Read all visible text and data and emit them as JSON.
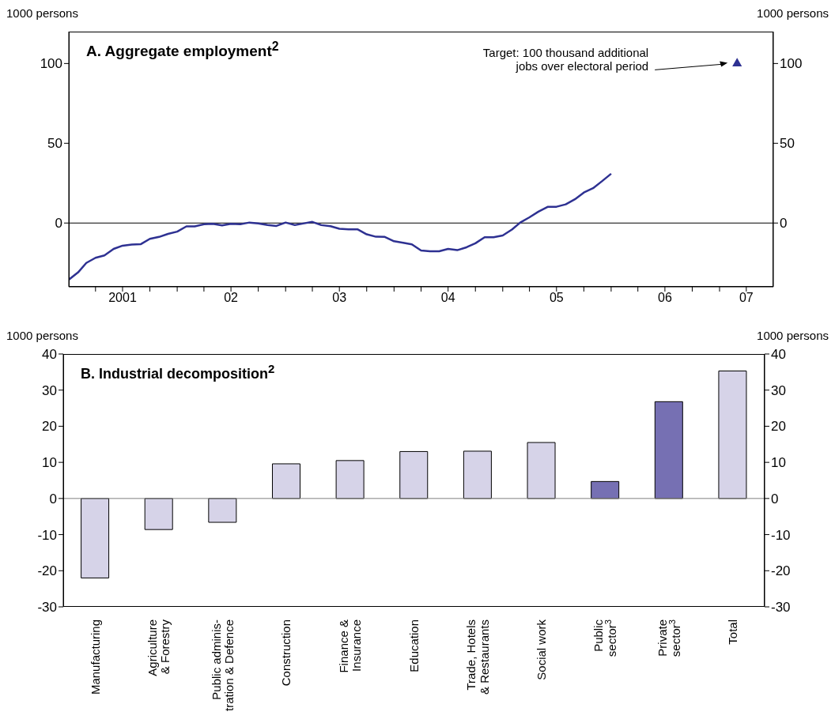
{
  "chart_data": [
    {
      "type": "line",
      "title": "A. Aggregate employment$^{2}$",
      "ylabel": "1000 persons",
      "y2label": "1000 persons",
      "xlim": [
        "2001-01",
        "2007-07"
      ],
      "ylim": [
        -40,
        120
      ],
      "y2lim": [
        -40,
        120
      ],
      "yticks": [
        0,
        50,
        100
      ],
      "y2ticks": [
        0,
        50,
        100
      ],
      "xticks": [
        {
          "value": "2001-04",
          "label": null
        },
        {
          "value": "2001-07",
          "label": "2001"
        },
        {
          "value": "2001-10",
          "label": null
        },
        {
          "value": "2002-01",
          "label": null
        },
        {
          "value": "2002-04",
          "label": null
        },
        {
          "value": "2002-07",
          "label": "02"
        },
        {
          "value": "2002-10",
          "label": null
        },
        {
          "value": "2003-01",
          "label": null
        },
        {
          "value": "2003-04",
          "label": null
        },
        {
          "value": "2003-07",
          "label": "03"
        },
        {
          "value": "2003-10",
          "label": null
        },
        {
          "value": "2004-01",
          "label": null
        },
        {
          "value": "2004-04",
          "label": null
        },
        {
          "value": "2004-07",
          "label": "04"
        },
        {
          "value": "2004-10",
          "label": null
        },
        {
          "value": "2005-01",
          "label": null
        },
        {
          "value": "2005-04",
          "label": null
        },
        {
          "value": "2005-07",
          "label": "05"
        },
        {
          "value": "2005-10",
          "label": null
        },
        {
          "value": "2006-01",
          "label": null
        },
        {
          "value": "2006-04",
          "label": null
        },
        {
          "value": "2006-07",
          "label": "06"
        },
        {
          "value": "2006-10",
          "label": null
        },
        {
          "value": "2007-01",
          "label": null
        },
        {
          "value": "2007-04",
          "label": "07"
        }
      ],
      "ref_lines": [
        {
          "axis": "y",
          "value": 0,
          "color": "#000000"
        }
      ],
      "annotations": [
        "Target: 100 thousand additional\njobs over electoral period"
      ],
      "series": [
        {
          "type": "line",
          "marker": "none",
          "color": "#2e3192",
          "x": [
            "2001-01",
            "2001-02",
            "2001-03",
            "2001-04",
            "2001-05",
            "2001-06",
            "2001-07",
            "2001-08",
            "2001-09",
            "2001-10",
            "2001-11",
            "2001-12",
            "2002-01",
            "2002-02",
            "2002-03",
            "2002-04",
            "2002-05",
            "2002-06",
            "2002-07",
            "2002-08",
            "2002-09",
            "2002-10",
            "2002-11",
            "2002-12",
            "2003-01",
            "2003-02",
            "2003-03",
            "2003-04",
            "2003-05",
            "2003-06",
            "2003-07",
            "2003-08",
            "2003-09",
            "2003-10",
            "2003-11",
            "2003-12",
            "2004-01",
            "2004-02",
            "2004-03",
            "2004-04",
            "2004-05",
            "2004-06",
            "2004-07",
            "2004-08",
            "2004-09",
            "2004-10",
            "2004-11",
            "2004-12",
            "2005-01",
            "2005-02",
            "2005-03",
            "2005-04",
            "2005-05",
            "2005-06",
            "2005-07",
            "2005-08",
            "2005-09",
            "2005-10",
            "2005-11",
            "2005-12",
            "2006-01"
          ],
          "values": [
            -35.5,
            -31,
            -25,
            -21.8,
            -20.3,
            -16.2,
            -14.2,
            -13.5,
            -13.2,
            -9.9,
            -8.7,
            -6.8,
            -5.4,
            -2.1,
            -2.1,
            -0.8,
            -0.5,
            -1.5,
            -0.5,
            -0.8,
            0.3,
            -0.2,
            -1.2,
            -1.8,
            0.3,
            -1.3,
            -0.3,
            0.7,
            -1.3,
            -2,
            -3.6,
            -4,
            -4,
            -7.1,
            -8.6,
            -8.7,
            -11.4,
            -12.4,
            -13.4,
            -17.2,
            -17.7,
            -17.7,
            -16.2,
            -17,
            -15.2,
            -12.7,
            -8.9,
            -8.9,
            -7.8,
            -4.1,
            0.3,
            3.6,
            7.1,
            10.1,
            10.2,
            11.7,
            14.9,
            19.1,
            21.8,
            26.2,
            30.9
          ]
        },
        {
          "type": "scatter",
          "marker": "triangle",
          "color": "#2e3192",
          "x": [
            "2007-03"
          ],
          "values": [
            100
          ]
        }
      ]
    },
    {
      "type": "bar",
      "title": "B. Industrial decomposition$^{2}$",
      "ylabel": "1000 persons",
      "y2label": "1000 persons",
      "ylim": [
        -30,
        40
      ],
      "y2lim": [
        -30,
        40
      ],
      "yticks": [
        -30,
        -20,
        -10,
        0,
        10,
        20,
        30,
        40
      ],
      "y2ticks": [
        -30,
        -20,
        -10,
        0,
        10,
        20,
        30,
        40
      ],
      "ref_lines": [
        {
          "axis": "y",
          "value": 0,
          "color": "#808080"
        }
      ],
      "categories": [
        "Manufacturing",
        "Agriculture\n& Forestry",
        "Public adminis-\ntration & Defence",
        "Construction",
        "Finance &\nInsurance",
        "Education",
        "Trade, Hotels\n& Restaurants",
        "Social work",
        "Public\nsector$^{3}$",
        "Private\nsector$^{3}$",
        "Total"
      ],
      "values": [
        -22,
        -8.6,
        -6.6,
        9.6,
        10.5,
        13,
        13.1,
        15.5,
        4.7,
        26.8,
        35.3
      ],
      "colors": [
        "#d6d3e8",
        "#d6d3e8",
        "#d6d3e8",
        "#d6d3e8",
        "#d6d3e8",
        "#d6d3e8",
        "#d6d3e8",
        "#d6d3e8",
        "#7670b3",
        "#7670b3",
        "#d6d3e8"
      ]
    }
  ]
}
